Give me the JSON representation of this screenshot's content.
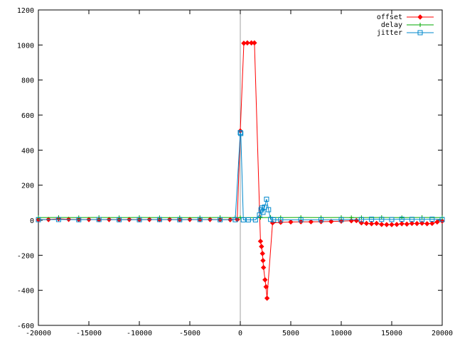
{
  "chart_data": {
    "type": "line",
    "xlim": [
      -20000,
      20000
    ],
    "ylim": [
      -600,
      1200
    ],
    "x_ticks": [
      "-20000",
      "-15000",
      "-10000",
      "-5000",
      "0",
      "5000",
      "10000",
      "15000",
      "20000"
    ],
    "y_ticks": [
      "-600",
      "-400",
      "-200",
      "0",
      "200",
      "400",
      "600",
      "800",
      "1000",
      "1200"
    ],
    "x_tick_values": [
      -20000,
      -15000,
      -10000,
      -5000,
      0,
      5000,
      10000,
      15000,
      20000
    ],
    "y_tick_values": [
      -600,
      -400,
      -200,
      0,
      200,
      400,
      600,
      800,
      1000,
      1200
    ],
    "grid": false,
    "zero_axis": "vertical line at x=0",
    "legend_position": "top-right",
    "series": [
      {
        "name": "offset",
        "color": "#ff0000",
        "marker": "diamond",
        "points": [
          [
            -20000,
            3
          ],
          [
            -19000,
            4
          ],
          [
            -18000,
            8
          ],
          [
            -17000,
            5
          ],
          [
            -16000,
            4
          ],
          [
            -15000,
            4
          ],
          [
            -14000,
            3
          ],
          [
            -13000,
            4
          ],
          [
            -12000,
            3
          ],
          [
            -11000,
            4
          ],
          [
            -10000,
            3
          ],
          [
            -9000,
            4
          ],
          [
            -8000,
            3
          ],
          [
            -7000,
            4
          ],
          [
            -6000,
            3
          ],
          [
            -5000,
            4
          ],
          [
            -4000,
            3
          ],
          [
            -3000,
            4
          ],
          [
            -2000,
            3
          ],
          [
            -1000,
            3
          ],
          [
            -300,
            4
          ],
          [
            0,
            510
          ],
          [
            350,
            1010
          ],
          [
            700,
            1012
          ],
          [
            1100,
            1012
          ],
          [
            1400,
            1012
          ],
          [
            2000,
            -120
          ],
          [
            2100,
            -150
          ],
          [
            2200,
            -190
          ],
          [
            2250,
            -230
          ],
          [
            2300,
            -270
          ],
          [
            2450,
            -340
          ],
          [
            2550,
            -380
          ],
          [
            2650,
            -445
          ],
          [
            3200,
            -15
          ],
          [
            4000,
            -12
          ],
          [
            5000,
            -10
          ],
          [
            6000,
            -9
          ],
          [
            7000,
            -9
          ],
          [
            8000,
            -8
          ],
          [
            9000,
            -7
          ],
          [
            10000,
            -5
          ],
          [
            11000,
            -3
          ],
          [
            11500,
            -2
          ],
          [
            12000,
            -15
          ],
          [
            12500,
            -18
          ],
          [
            13000,
            -20
          ],
          [
            13500,
            -18
          ],
          [
            14000,
            -24
          ],
          [
            14500,
            -25
          ],
          [
            15000,
            -25
          ],
          [
            15500,
            -24
          ],
          [
            16000,
            -20
          ],
          [
            16500,
            -22
          ],
          [
            17000,
            -18
          ],
          [
            17500,
            -19
          ],
          [
            18000,
            -17
          ],
          [
            18500,
            -20
          ],
          [
            19000,
            -18
          ],
          [
            19500,
            -10
          ],
          [
            20000,
            -5
          ]
        ]
      },
      {
        "name": "delay",
        "color": "#00aa00",
        "marker": "plus",
        "points": [
          [
            -20000,
            15
          ],
          [
            -18000,
            16
          ],
          [
            -16000,
            15
          ],
          [
            -14000,
            16
          ],
          [
            -12000,
            15
          ],
          [
            -10000,
            16
          ],
          [
            -8000,
            15
          ],
          [
            -6000,
            15
          ],
          [
            -4000,
            15
          ],
          [
            -2000,
            16
          ],
          [
            -500,
            15
          ],
          [
            0,
            15
          ],
          [
            2000,
            15
          ],
          [
            3000,
            16
          ],
          [
            4000,
            15
          ],
          [
            6000,
            16
          ],
          [
            8000,
            15
          ],
          [
            10000,
            16
          ],
          [
            11000,
            15
          ],
          [
            12000,
            15
          ],
          [
            14000,
            16
          ],
          [
            16000,
            15
          ],
          [
            18000,
            16
          ],
          [
            20000,
            15
          ]
        ]
      },
      {
        "name": "jitter",
        "color": "#0088cc",
        "marker": "square",
        "points": [
          [
            -20000,
            3
          ],
          [
            -18000,
            4
          ],
          [
            -16000,
            3
          ],
          [
            -14000,
            4
          ],
          [
            -12000,
            3
          ],
          [
            -10000,
            3
          ],
          [
            -8000,
            4
          ],
          [
            -6000,
            3
          ],
          [
            -4000,
            4
          ],
          [
            -2000,
            3
          ],
          [
            -500,
            3
          ],
          [
            0,
            500
          ],
          [
            50,
            495
          ],
          [
            300,
            2
          ],
          [
            800,
            2
          ],
          [
            1500,
            2
          ],
          [
            1900,
            30
          ],
          [
            2050,
            60
          ],
          [
            2150,
            70
          ],
          [
            2250,
            45
          ],
          [
            2400,
            75
          ],
          [
            2600,
            120
          ],
          [
            2800,
            60
          ],
          [
            3000,
            5
          ],
          [
            3300,
            2
          ],
          [
            4000,
            2
          ],
          [
            6000,
            2
          ],
          [
            8000,
            2
          ],
          [
            10000,
            3
          ],
          [
            12000,
            4
          ],
          [
            13000,
            6
          ],
          [
            14000,
            5
          ],
          [
            15000,
            4
          ],
          [
            16000,
            6
          ],
          [
            17000,
            5
          ],
          [
            18000,
            4
          ],
          [
            19000,
            6
          ],
          [
            20000,
            4
          ]
        ]
      }
    ]
  }
}
